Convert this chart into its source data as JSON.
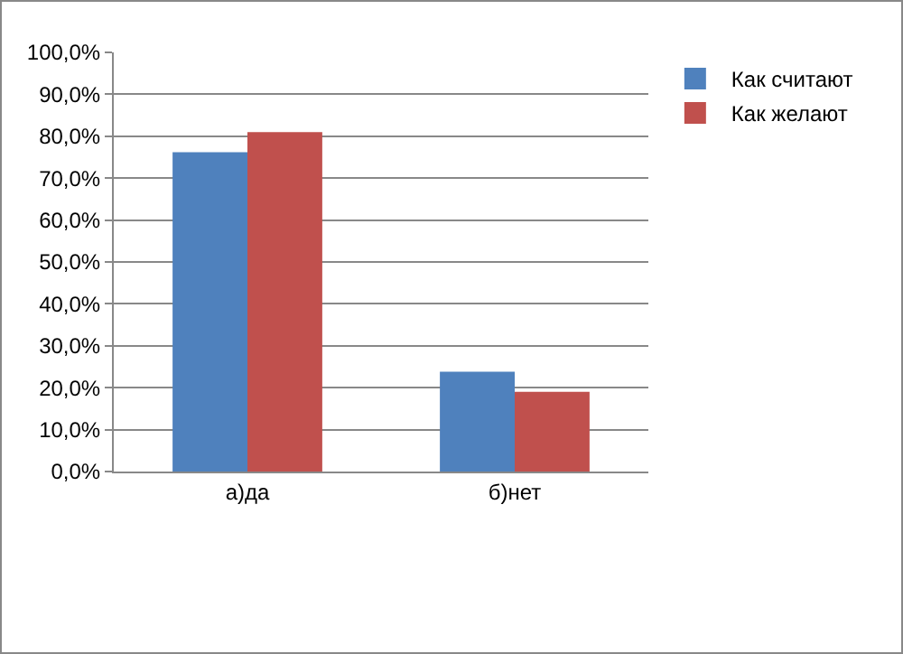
{
  "chart_data": {
    "type": "bar",
    "categories": [
      "а)да",
      "б)нет"
    ],
    "series": [
      {
        "name": "Как считают",
        "color": "#4f81bd",
        "values": [
          76.2,
          23.8
        ]
      },
      {
        "name": "Как желают",
        "color": "#c0504d",
        "values": [
          81,
          19
        ]
      }
    ],
    "ylim": [
      0,
      100
    ],
    "yticks": [
      {
        "value": 0,
        "label": "0,0%"
      },
      {
        "value": 10,
        "label": "10,0%"
      },
      {
        "value": 20,
        "label": "20,0%"
      },
      {
        "value": 30,
        "label": "30,0%"
      },
      {
        "value": 40,
        "label": "40,0%"
      },
      {
        "value": 50,
        "label": "50,0%"
      },
      {
        "value": 60,
        "label": "60,0%"
      },
      {
        "value": 70,
        "label": "70,0%"
      },
      {
        "value": 80,
        "label": "80,0%"
      },
      {
        "value": 90,
        "label": "90,0%"
      },
      {
        "value": 100,
        "label": "100,0%"
      }
    ],
    "grid": "y",
    "legend": "right"
  }
}
